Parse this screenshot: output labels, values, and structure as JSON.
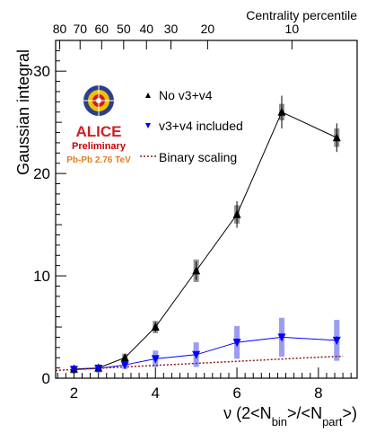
{
  "chart_data": {
    "type": "line",
    "ylabel": "Gaussian integral",
    "xlabel": "ν (2<N_bin>/<N_part>)",
    "top_axis_label": "Centrality percentile",
    "top_ticks": [
      "80",
      "70",
      "60",
      "50",
      "40",
      "30",
      "20",
      "10"
    ],
    "top_tick_x": [
      1.65,
      2.15,
      2.68,
      3.22,
      3.78,
      4.38,
      5.28,
      7.35
    ],
    "xlim": [
      1.55,
      8.95
    ],
    "ylim": [
      0,
      33
    ],
    "xticks": [
      2,
      4,
      6,
      8
    ],
    "yticks": [
      0,
      10,
      20,
      30
    ],
    "legend_placement": "top-left",
    "series": [
      {
        "name": "No v3+v4",
        "color": "#000000",
        "marker": "triangle-up",
        "x": [
          2.0,
          2.6,
          3.25,
          4.0,
          5.0,
          6.0,
          7.1,
          8.45
        ],
        "y": [
          0.9,
          1.0,
          2.0,
          5.0,
          10.5,
          16.0,
          26.0,
          23.5
        ],
        "err": [
          0.2,
          0.2,
          0.3,
          0.5,
          0.9,
          1.3,
          1.6,
          1.4
        ],
        "sys": [
          0.3,
          0.3,
          0.4,
          0.6,
          1.1,
          0.9,
          0.8,
          0.9
        ]
      },
      {
        "name": "v3+v4 included",
        "color": "#0000ff",
        "marker": "triangle-down",
        "x": [
          2.0,
          2.6,
          3.25,
          4.0,
          5.0,
          6.0,
          7.1,
          8.45
        ],
        "y": [
          0.85,
          0.95,
          1.3,
          1.9,
          2.3,
          3.5,
          4.0,
          3.7
        ],
        "err": [
          0.2,
          0.2,
          0.2,
          0.3,
          0.3,
          0.4,
          0.4,
          0.4
        ],
        "sys": [
          0.4,
          0.4,
          0.4,
          0.8,
          1.2,
          1.6,
          1.9,
          2.0
        ]
      },
      {
        "name": "Binary scaling",
        "color": "#8b1a1a",
        "style": "dotted",
        "x": [
          1.55,
          2.0,
          3.0,
          4.0,
          5.0,
          6.0,
          7.0,
          8.0,
          8.6
        ],
        "y": [
          0.75,
          0.85,
          1.05,
          1.25,
          1.45,
          1.65,
          1.85,
          2.05,
          2.15
        ]
      }
    ]
  },
  "logo": {
    "name": "ALICE",
    "line1": "Preliminary",
    "line2": "Pb-Pb 2.76 TeV",
    "colors": {
      "alice": "#d02020",
      "preliminary": "#cc0000",
      "energy": "#e08020"
    }
  }
}
